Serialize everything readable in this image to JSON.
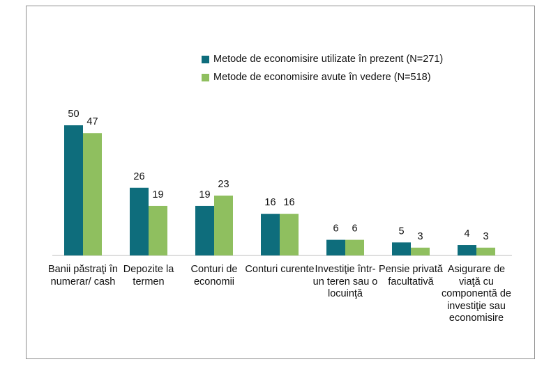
{
  "chart_data": {
    "type": "bar",
    "categories": [
      "Banii păstraţi în numerar/ cash",
      "Depozite la termen",
      "Conturi de economii",
      "Conturi curente",
      "Investiţie într-un teren sau o locuinţă",
      "Pensie privată facultativă",
      "Asigurare de viaţă cu componentă de investiţie sau economisire"
    ],
    "series": [
      {
        "name": "Metode de economisire utilizate în prezent (N=271)",
        "color": "#0e6d7c",
        "values": [
          50,
          26,
          19,
          16,
          6,
          5,
          4
        ]
      },
      {
        "name": "Metode de economisire avute în vedere (N=518)",
        "color": "#8fbf5f",
        "values": [
          47,
          19,
          23,
          16,
          6,
          3,
          3
        ]
      }
    ],
    "ylim": [
      0,
      50
    ],
    "grid": false,
    "legend_position": "top-right"
  }
}
